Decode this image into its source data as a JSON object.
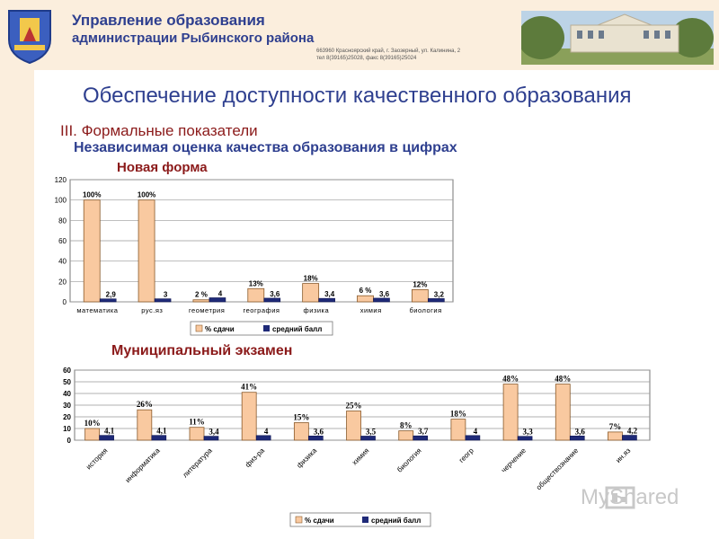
{
  "header": {
    "org_line1": "Управление образования",
    "org_line2": "администрации Рыбинского района",
    "address_line1": "663960  Красноярский край,  г. Заозерный,  ул. Калинина, 2",
    "address_line2": "тел 8(39165)25028,   факс 8(39165)25024"
  },
  "slide": {
    "title": "Обеспечение доступности качественного образования",
    "section": "III. Формальные показатели",
    "subtitle": "Независимая оценка качества образования в цифрах",
    "chart1_caption": "Новая форма",
    "chart2_caption": "Муниципальный экзамен"
  },
  "colors": {
    "bar_percent": "#f9c9a0",
    "bar_score": "#1f2a78",
    "title_blue": "#2e3f8f",
    "caption_red": "#8b1a1a"
  },
  "chart_data": [
    {
      "type": "bar",
      "categories": [
        "математика",
        "рус.яз",
        "геометрия",
        "география",
        "физика",
        "химия",
        "биология"
      ],
      "series": [
        {
          "name": "% сдачи",
          "values": [
            100,
            100,
            2,
            13,
            18,
            6,
            12
          ],
          "labels": [
            "100%",
            "100%",
            "2 %",
            "13%",
            "18%",
            "6 %",
            "12%"
          ]
        },
        {
          "name": "средний балл",
          "values": [
            2.9,
            3,
            4,
            3.6,
            3.4,
            3.6,
            3.2
          ],
          "labels": [
            "2,9",
            "3",
            "4",
            "3,6",
            "3,4",
            "3,6",
            "3,2"
          ]
        }
      ],
      "yticks": [
        "0",
        "20",
        "40",
        "60",
        "80",
        "100",
        "120"
      ],
      "ylim": [
        0,
        120
      ],
      "legend": "bottom"
    },
    {
      "type": "bar",
      "categories": [
        "история",
        "информатика",
        "литература",
        "физ-ра",
        "физика",
        "химия",
        "биология",
        "геогр",
        "черчение",
        "обществознание",
        "ин.яз"
      ],
      "series": [
        {
          "name": "% сдачи",
          "values": [
            10,
            26,
            11,
            41,
            15,
            25,
            8,
            18,
            48,
            48,
            7
          ],
          "labels": [
            "10%",
            "26%",
            "11%",
            "41%",
            "15%",
            "25%",
            "8%",
            "18%",
            "48%",
            "48%",
            "7%"
          ]
        },
        {
          "name": "средний балл",
          "values": [
            4.1,
            4.1,
            3.4,
            4,
            3.6,
            3.5,
            3.7,
            4,
            3.3,
            3.6,
            4.2
          ],
          "labels": [
            "4,1",
            "4,1",
            "3,4",
            "4",
            "3,6",
            "3,5",
            "3,7",
            "4",
            "3,3",
            "3,6",
            "4,2"
          ]
        }
      ],
      "yticks": [
        "0",
        "10",
        "20",
        "30",
        "40",
        "50",
        "60"
      ],
      "ylim": [
        0,
        60
      ],
      "legend": "bottom"
    }
  ],
  "watermark": "MyShared"
}
